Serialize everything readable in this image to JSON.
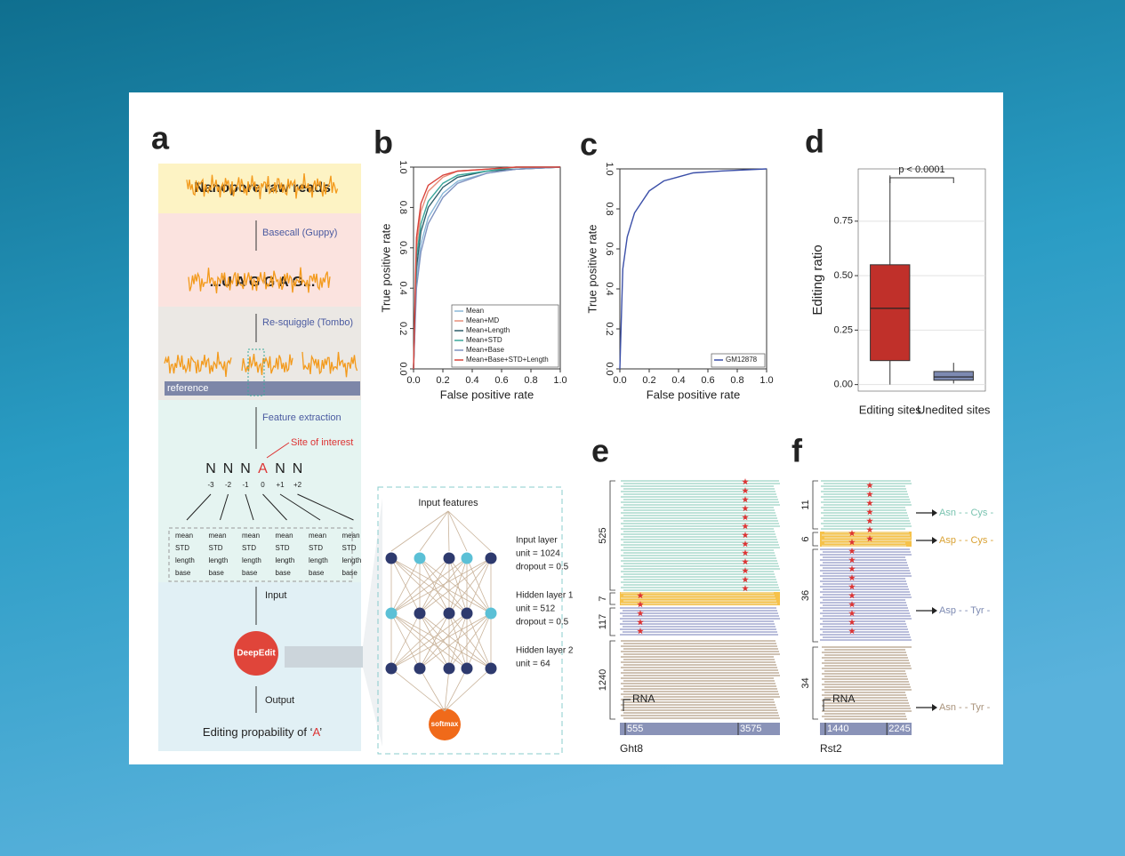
{
  "panel_a": {
    "label": "a",
    "raw": "Nanopore raw reads",
    "basecall": "Basecall (Guppy)",
    "sequence": "...U A G G A G...",
    "resquiggle": "Re-squiggle (Tombo)",
    "reference": "reference",
    "feature": "Feature extraction",
    "site": "Site of interest",
    "bases": [
      "N",
      "N",
      "N",
      "A",
      "N",
      "N"
    ],
    "positions": [
      "-3",
      "-2",
      "-1",
      "0",
      "+1",
      "+2"
    ],
    "features": [
      "mean",
      "STD",
      "length",
      "base"
    ],
    "input": "Input",
    "model": "DeepEdit",
    "output": "Output",
    "result_prefix": "Editing propability of ‘",
    "result_base": "A",
    "result_suffix": "’"
  },
  "network": {
    "title": "Input features",
    "layers": [
      {
        "name": "Input layer",
        "unit": "unit = 1024",
        "dropout": "dropout = 0.5"
      },
      {
        "name": "Hidden layer 1",
        "unit": "unit = 512",
        "dropout": "dropout = 0.5"
      },
      {
        "name": "Hidden layer 2",
        "unit": "unit = 64"
      }
    ],
    "output": "softmax"
  },
  "panel_b": {
    "label": "b",
    "type": "line",
    "xlabel": "False positive rate",
    "ylabel": "True positive rate",
    "xlim": [
      0,
      1
    ],
    "ylim": [
      0,
      1
    ],
    "xticks": [
      {
        "value": 0,
        "label": "0.0"
      },
      0.2,
      0.4,
      0.6,
      0.8,
      {
        "value": 1,
        "label": "1.0"
      }
    ],
    "yticks": [
      {
        "value": 0,
        "label": "0.0"
      },
      0.2,
      0.4,
      0.6,
      0.8,
      {
        "value": 1,
        "label": "1.0"
      }
    ],
    "x": [
      0,
      0.02,
      0.05,
      0.1,
      0.2,
      0.3,
      0.5,
      0.7,
      1
    ],
    "series": [
      {
        "name": "Mean",
        "color": "#8ab8d8",
        "values": [
          0,
          0.45,
          0.62,
          0.75,
          0.87,
          0.93,
          0.97,
          0.99,
          1
        ]
      },
      {
        "name": "Mean+MD",
        "color": "#e88f7a",
        "values": [
          0,
          0.6,
          0.78,
          0.88,
          0.95,
          0.98,
          0.99,
          1,
          1
        ]
      },
      {
        "name": "Mean+Length",
        "color": "#2f5f6b",
        "values": [
          0,
          0.5,
          0.68,
          0.8,
          0.9,
          0.95,
          0.98,
          0.99,
          1
        ]
      },
      {
        "name": "Mean+STD",
        "color": "#3aa79a",
        "values": [
          0,
          0.55,
          0.72,
          0.83,
          0.92,
          0.96,
          0.98,
          1,
          1
        ]
      },
      {
        "name": "Mean+Base",
        "color": "#7f93c0",
        "values": [
          0,
          0.4,
          0.58,
          0.72,
          0.85,
          0.92,
          0.97,
          0.99,
          1
        ]
      },
      {
        "name": "Mean+Base+STD+Length",
        "color": "#d9423a",
        "values": [
          0,
          0.65,
          0.82,
          0.91,
          0.96,
          0.98,
          0.99,
          1,
          1
        ]
      }
    ]
  },
  "panel_c": {
    "label": "c",
    "type": "line",
    "xlabel": "False positive rate",
    "ylabel": "True positive rate",
    "xlim": [
      0,
      1
    ],
    "ylim": [
      0,
      1
    ],
    "xticks": [
      {
        "value": 0,
        "label": "0.0"
      },
      0.2,
      0.4,
      0.6,
      0.8,
      {
        "value": 1,
        "label": "1.0"
      }
    ],
    "yticks": [
      {
        "value": 0,
        "label": "0.0"
      },
      0.2,
      0.4,
      0.6,
      0.8,
      {
        "value": 1,
        "label": "1.0"
      }
    ],
    "x": [
      0,
      0.02,
      0.05,
      0.1,
      0.2,
      0.3,
      0.5,
      0.7,
      1
    ],
    "series": [
      {
        "name": "GM12878",
        "color": "#3b4fa8",
        "values": [
          0,
          0.5,
          0.66,
          0.78,
          0.89,
          0.94,
          0.98,
          0.99,
          1
        ]
      }
    ]
  },
  "panel_d": {
    "label": "d",
    "type": "box",
    "ylabel": "Editing ratio",
    "ylim": [
      -0.03,
      0.99
    ],
    "yticks": [
      {
        "value": 0,
        "label": "0.00"
      },
      0.25,
      {
        "value": 0.5,
        "label": "0.50"
      },
      0.75
    ],
    "grid": true,
    "categories": [
      "Editing sites",
      "Unedited sites"
    ],
    "boxes": [
      {
        "low": 0,
        "q1": 0.11,
        "median": 0.35,
        "q3": 0.55,
        "high": 0.96,
        "color": "#c0302a"
      },
      {
        "low": 0.005,
        "q1": 0.02,
        "median": 0.035,
        "q3": 0.06,
        "high": 0.1,
        "color": "#7d8ab2"
      }
    ],
    "annotation": "p < 0.0001"
  },
  "panel_e": {
    "label": "e",
    "groups": [
      525,
      7,
      117,
      1240
    ],
    "track": "RNA",
    "positions": [
      555,
      3575
    ],
    "gene": "Ght8"
  },
  "panel_f": {
    "label": "f",
    "groups": [
      11,
      6,
      36,
      34
    ],
    "track": "RNA",
    "positions": [
      1440,
      2245
    ],
    "gene": "Rst2",
    "changes": [
      "Asn - - Cys -",
      "Asp - - Cys -",
      "Asp - - Tyr -",
      "Asn - - Tyr -"
    ]
  }
}
